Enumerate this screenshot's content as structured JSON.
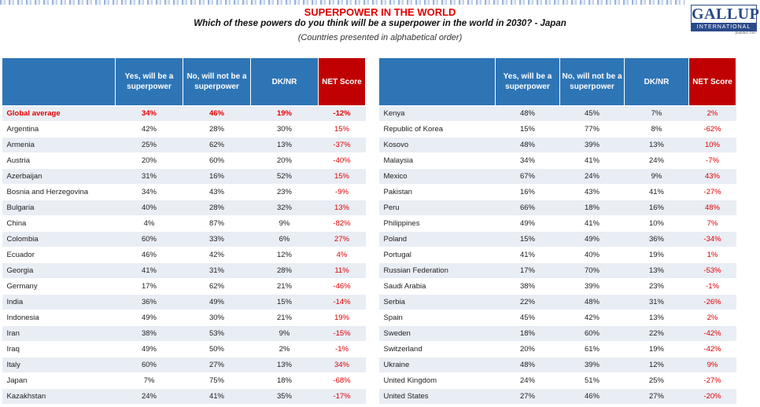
{
  "header": {
    "title": "SUPERPOWER IN THE WORLD",
    "subtitle": "Which of these powers do you think will be a superpower in the world in 2030? - Japan",
    "note": "(Countries presented in alphabetical order)"
  },
  "logo": {
    "name": "GALLUP",
    "sub": "INTERNATIONAL",
    "est": "founded 1947"
  },
  "columns": {
    "country": "",
    "yes": "Yes, will be a superpower",
    "no": "No, will not be a superpower",
    "dk": "DK/NR",
    "net": "NET Score"
  },
  "left_table": [
    {
      "country": "Global average",
      "yes": "34%",
      "no": "46%",
      "dk": "19%",
      "net": "-12%",
      "highlight": true
    },
    {
      "country": "Argentina",
      "yes": "42%",
      "no": "28%",
      "dk": "30%",
      "net": "15%"
    },
    {
      "country": "Armenia",
      "yes": "25%",
      "no": "62%",
      "dk": "13%",
      "net": "-37%"
    },
    {
      "country": "Austria",
      "yes": "20%",
      "no": "60%",
      "dk": "20%",
      "net": "-40%"
    },
    {
      "country": "Azerbaijan",
      "yes": "31%",
      "no": "16%",
      "dk": "52%",
      "net": "15%"
    },
    {
      "country": "Bosnia and Herzegovina",
      "yes": "34%",
      "no": "43%",
      "dk": "23%",
      "net": "-9%"
    },
    {
      "country": "Bulgaria",
      "yes": "40%",
      "no": "28%",
      "dk": "32%",
      "net": "13%"
    },
    {
      "country": "China",
      "yes": "4%",
      "no": "87%",
      "dk": "9%",
      "net": "-82%"
    },
    {
      "country": "Colombia",
      "yes": "60%",
      "no": "33%",
      "dk": "6%",
      "net": "27%"
    },
    {
      "country": "Ecuador",
      "yes": "46%",
      "no": "42%",
      "dk": "12%",
      "net": "4%"
    },
    {
      "country": "Georgia",
      "yes": "41%",
      "no": "31%",
      "dk": "28%",
      "net": "11%"
    },
    {
      "country": "Germany",
      "yes": "17%",
      "no": "62%",
      "dk": "21%",
      "net": "-46%"
    },
    {
      "country": "India",
      "yes": "36%",
      "no": "49%",
      "dk": "15%",
      "net": "-14%"
    },
    {
      "country": "Indonesia",
      "yes": "49%",
      "no": "30%",
      "dk": "21%",
      "net": "19%"
    },
    {
      "country": "Iran",
      "yes": "38%",
      "no": "53%",
      "dk": "9%",
      "net": "-15%"
    },
    {
      "country": "Iraq",
      "yes": "49%",
      "no": "50%",
      "dk": "2%",
      "net": "-1%"
    },
    {
      "country": "Italy",
      "yes": "60%",
      "no": "27%",
      "dk": "13%",
      "net": "34%"
    },
    {
      "country": "Japan",
      "yes": "7%",
      "no": "75%",
      "dk": "18%",
      "net": "-68%"
    },
    {
      "country": "Kazakhstan",
      "yes": "24%",
      "no": "41%",
      "dk": "35%",
      "net": "-17%"
    }
  ],
  "right_table": [
    {
      "country": "Kenya",
      "yes": "48%",
      "no": "45%",
      "dk": "7%",
      "net": "2%"
    },
    {
      "country": "Republic of Korea",
      "yes": "15%",
      "no": "77%",
      "dk": "8%",
      "net": "-62%"
    },
    {
      "country": "Kosovo",
      "yes": "48%",
      "no": "39%",
      "dk": "13%",
      "net": "10%"
    },
    {
      "country": "Malaysia",
      "yes": "34%",
      "no": "41%",
      "dk": "24%",
      "net": "-7%"
    },
    {
      "country": "Mexico",
      "yes": "67%",
      "no": "24%",
      "dk": "9%",
      "net": "43%"
    },
    {
      "country": "Pakistan",
      "yes": "16%",
      "no": "43%",
      "dk": "41%",
      "net": "-27%"
    },
    {
      "country": "Peru",
      "yes": "66%",
      "no": "18%",
      "dk": "16%",
      "net": "48%"
    },
    {
      "country": "Philippines",
      "yes": "49%",
      "no": "41%",
      "dk": "10%",
      "net": "7%"
    },
    {
      "country": "Poland",
      "yes": "15%",
      "no": "49%",
      "dk": "36%",
      "net": "-34%"
    },
    {
      "country": "Portugal",
      "yes": "41%",
      "no": "40%",
      "dk": "19%",
      "net": "1%"
    },
    {
      "country": "Russian Federation",
      "yes": "17%",
      "no": "70%",
      "dk": "13%",
      "net": "-53%"
    },
    {
      "country": "Saudi Arabia",
      "yes": "38%",
      "no": "39%",
      "dk": "23%",
      "net": "-1%"
    },
    {
      "country": "Serbia",
      "yes": "22%",
      "no": "48%",
      "dk": "31%",
      "net": "-26%"
    },
    {
      "country": "Spain",
      "yes": "45%",
      "no": "42%",
      "dk": "13%",
      "net": "2%"
    },
    {
      "country": "Sweden",
      "yes": "18%",
      "no": "60%",
      "dk": "22%",
      "net": "-42%"
    },
    {
      "country": "Switzerland",
      "yes": "20%",
      "no": "61%",
      "dk": "19%",
      "net": "-42%"
    },
    {
      "country": "Ukraine",
      "yes": "48%",
      "no": "39%",
      "dk": "12%",
      "net": "9%"
    },
    {
      "country": "United Kingdom",
      "yes": "24%",
      "no": "51%",
      "dk": "25%",
      "net": "-27%"
    },
    {
      "country": "United States",
      "yes": "27%",
      "no": "46%",
      "dk": "27%",
      "net": "-20%"
    }
  ],
  "colors": {
    "header_blue": "#2e75b6",
    "net_red": "#c00000",
    "text_red": "#e00000",
    "stripe": "#e9edf4"
  }
}
